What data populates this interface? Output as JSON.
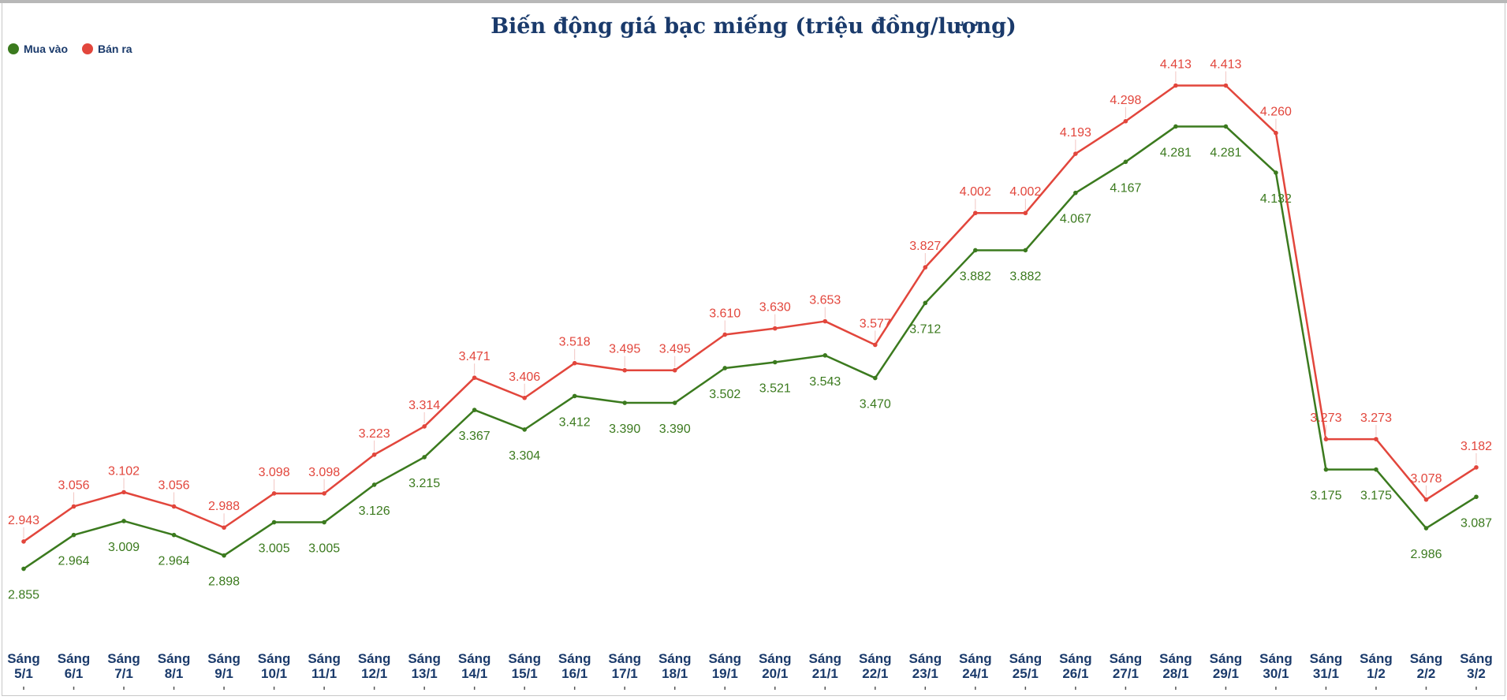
{
  "chart_data": {
    "type": "line",
    "title": "Biến động giá bạc miếng (triệu đồng/lượng)",
    "legend_position": "top-left",
    "grid": false,
    "categories": [
      "Sáng 5/1",
      "Sáng 6/1",
      "Sáng 7/1",
      "Sáng 8/1",
      "Sáng 9/1",
      "Sáng 10/1",
      "Sáng 11/1",
      "Sáng 12/1",
      "Sáng 13/1",
      "Sáng 14/1",
      "Sáng 15/1",
      "Sáng 16/1",
      "Sáng 17/1",
      "Sáng 18/1",
      "Sáng 19/1",
      "Sáng 20/1",
      "Sáng 21/1",
      "Sáng 22/1",
      "Sáng 23/1",
      "Sáng 24/1",
      "Sáng 25/1",
      "Sáng 26/1",
      "Sáng 27/1",
      "Sáng 28/1",
      "Sáng 29/1",
      "Sáng 30/1",
      "Sáng 31/1",
      "Sáng 1/2",
      "Sáng 2/2",
      "Sáng 3/2"
    ],
    "series": [
      {
        "name": "Mua vào",
        "color": "#3b7a1e",
        "values": [
          2.855,
          2.964,
          3.009,
          2.964,
          2.898,
          3.005,
          3.005,
          3.126,
          3.215,
          3.367,
          3.304,
          3.412,
          3.39,
          3.39,
          3.502,
          3.521,
          3.543,
          3.47,
          3.712,
          3.882,
          3.882,
          4.067,
          4.167,
          4.281,
          4.281,
          4.132,
          3.175,
          3.175,
          2.986,
          3.087
        ]
      },
      {
        "name": "Bán ra",
        "color": "#e2463c",
        "values": [
          2.943,
          3.056,
          3.102,
          3.056,
          2.988,
          3.098,
          3.098,
          3.223,
          3.314,
          3.471,
          3.406,
          3.518,
          3.495,
          3.495,
          3.61,
          3.63,
          3.653,
          3.577,
          3.827,
          4.002,
          4.002,
          4.193,
          4.298,
          4.413,
          4.413,
          4.26,
          3.273,
          3.273,
          3.078,
          3.182
        ]
      }
    ]
  }
}
